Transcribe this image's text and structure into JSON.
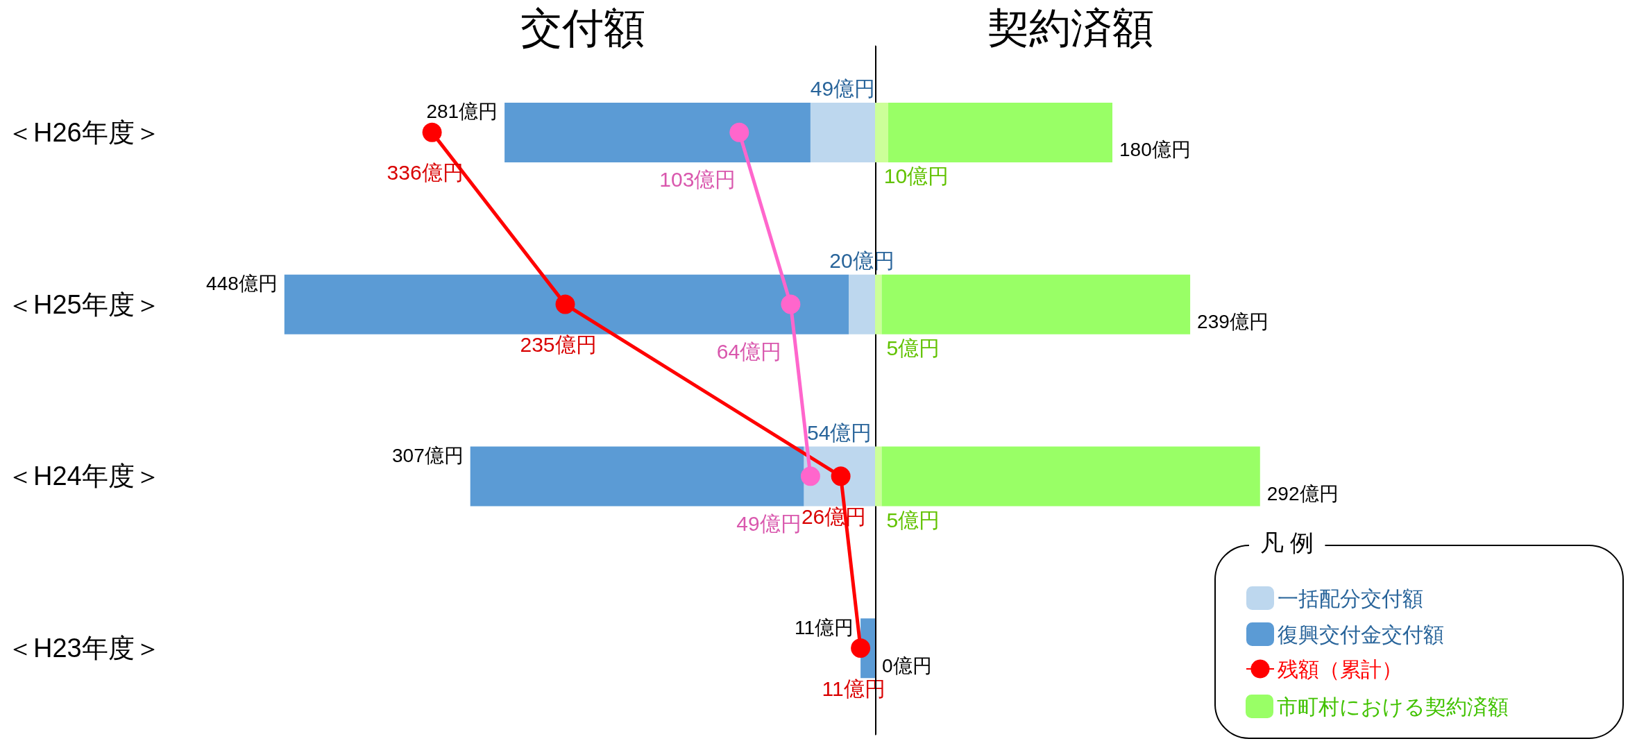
{
  "chart_data": [
    {
      "type": "bar",
      "orientation": "horizontal",
      "stacked": true,
      "title": "交付額",
      "categories": [
        "＜H26年度＞",
        "＜H25年度＞",
        "＜H24年度＞",
        "＜H23年度＞"
      ],
      "tick_labels": "y",
      "grid": false,
      "legend": "bottom right",
      "marker": "circle",
      "series": [
        {
          "name": "一括配分交付額",
          "color": "#bdd7ee",
          "values": [
            49,
            20,
            54,
            null
          ],
          "value_labels": [
            "49億円",
            "20億円",
            "54億円",
            null
          ]
        },
        {
          "name": "復興交付金交付額",
          "color": "#5b9bd5",
          "values": [
            232,
            428,
            253,
            11
          ]
        },
        {
          "name": "残額（累計）",
          "type": "line",
          "color": "#ff0000",
          "values": [
            336,
            235,
            26,
            11
          ],
          "value_labels": [
            "336億円",
            "235億円",
            "26億円",
            "11億円"
          ]
        },
        {
          "type": "line",
          "color": "#ff66cc",
          "values": [
            103,
            64,
            49,
            null
          ],
          "value_labels": [
            "103億円",
            "64億円",
            "49億円",
            null
          ]
        }
      ],
      "totals": [
        "281億円",
        "448億円",
        "307億円",
        "11億円"
      ]
    },
    {
      "type": "bar",
      "orientation": "horizontal",
      "stacked": true,
      "title": "契約済額",
      "categories": [
        null,
        null,
        null,
        null
      ],
      "tick_labels": false,
      "grid": false,
      "legend": "bottom right",
      "legend_title": "凡 例",
      "series": [
        {
          "color": "#ccff99",
          "values": [
            10,
            5,
            5,
            null
          ],
          "value_labels": [
            "10億円",
            "5億円",
            "5億円",
            null
          ]
        },
        {
          "name": "市町村における契約済額",
          "color": "#99ff66",
          "values": [
            170,
            234,
            287,
            0
          ]
        }
      ],
      "totals": [
        "180億円",
        "239億円",
        "292億円",
        "0億円"
      ]
    }
  ]
}
